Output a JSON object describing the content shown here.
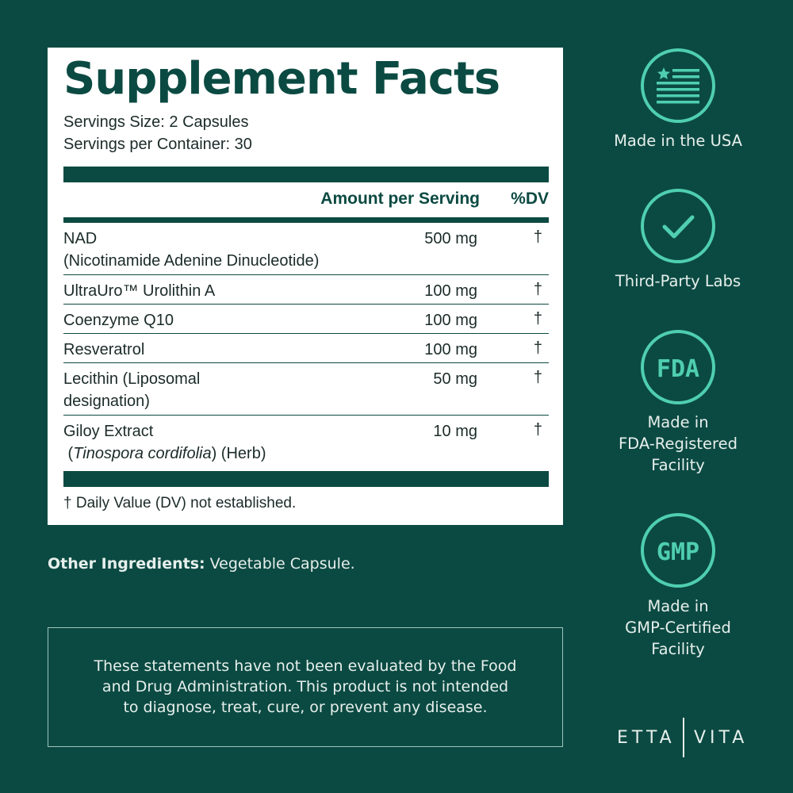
{
  "label": {
    "title": "Supplement Facts",
    "serving_size": "Servings Size: 2 Capsules",
    "servings_per_container": "Servings per Container: 30",
    "header_amount": "Amount per Serving",
    "header_dv": "%DV",
    "rows": [
      {
        "name_line1": "NAD",
        "name_line2": "(Nicotinamide Adenine Dinucleotide)",
        "amount": "500 mg",
        "dv": "†"
      },
      {
        "name_line1": "UltraUro™ Urolithin A",
        "amount": "100 mg",
        "dv": "†"
      },
      {
        "name_line1": "Coenzyme Q10",
        "amount": "100 mg",
        "dv": "†"
      },
      {
        "name_line1": "Resveratrol",
        "amount": "100 mg",
        "dv": "†"
      },
      {
        "name_line1": "Lecithin (Liposomal",
        "name_line2": "designation)",
        "amount": "50 mg",
        "dv": "†"
      },
      {
        "name_line1": "Giloy Extract",
        "name_line2_italic": "Tinospora cordifolia",
        "name_line2_suffix": " (Herb)",
        "amount": "10 mg",
        "dv": "†"
      }
    ],
    "footnote_mark": "†",
    "footnote": "Daily Value (DV) not established."
  },
  "other_ingredients": {
    "label": "Other Ingredients:",
    "value": " Vegetable Capsule."
  },
  "disclaimer": {
    "line1": "These statements have not been evaluated by the Food",
    "line2": "and Drug Administration. This product is not intended",
    "line3": "to diagnose, treat, cure, or prevent any disease."
  },
  "badges": [
    {
      "icon": "usa-flag-icon",
      "line1": "Made in the USA"
    },
    {
      "icon": "checkmark-icon",
      "line1": "Third-Party Labs"
    },
    {
      "icon": "fda-icon",
      "icon_text": "FDA",
      "line1": "Made in",
      "line2": "FDA-Registered",
      "line3": "Facility"
    },
    {
      "icon": "gmp-icon",
      "icon_text": "GMP",
      "line1": "Made in",
      "line2": "GMP-Certified",
      "line3": "Facility"
    }
  ],
  "brand": {
    "left": "ETTA",
    "right": "VITA"
  },
  "colors": {
    "background": "#0b4a42",
    "accent": "#4fcfb0",
    "panel": "#ffffff"
  }
}
